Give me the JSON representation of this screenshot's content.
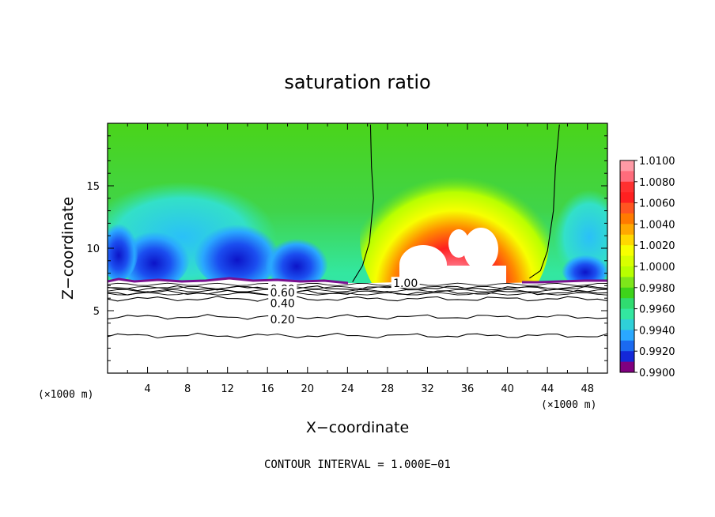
{
  "chart_data": {
    "type": "heatmap",
    "title": "saturation ratio",
    "xlabel": "X−coordinate",
    "ylabel": "Z−coordinate",
    "x_unit": "(×1000 m)",
    "xlim": [
      0,
      50
    ],
    "ylim": [
      0,
      20
    ],
    "x_ticks": [
      "4",
      "8",
      "12",
      "16",
      "20",
      "24",
      "28",
      "32",
      "36",
      "40",
      "44",
      "48"
    ],
    "y_ticks": [
      "5",
      "10",
      "15"
    ],
    "colorbar": {
      "labels": [
        "1.0100",
        "1.0080",
        "1.0060",
        "1.0040",
        "1.0020",
        "1.0000",
        "0.9980",
        "0.9960",
        "0.9940",
        "0.9920",
        "0.9900"
      ],
      "colors": [
        "#ff9aa6",
        "#ff3030",
        "#ff5520",
        "#ff8a00",
        "#f7ff00",
        "#b8ff00",
        "#3ed31a",
        "#33e7a0",
        "#2aa8ff",
        "#1428d8",
        "#800080"
      ]
    },
    "contours": [
      {
        "label": "1.00",
        "points": [
          [
            24.5,
            7.3
          ],
          [
            25.5,
            8.6
          ],
          [
            26.2,
            10.5
          ],
          [
            26.6,
            14
          ],
          [
            26.4,
            16.5
          ],
          [
            26.3,
            19.9
          ]
        ],
        "label_at": [
          29.8,
          7.2
        ]
      },
      {
        "label": "1.00",
        "points": [
          [
            42.2,
            7.6
          ],
          [
            43.3,
            8.2
          ],
          [
            44,
            9.8
          ],
          [
            44.6,
            13
          ],
          [
            44.8,
            16.5
          ],
          [
            45.2,
            19.9
          ]
        ],
        "label_at": null
      },
      {
        "label": "0.80",
        "y": 6.8,
        "label_at": [
          17.5,
          6.75
        ]
      },
      {
        "label": "0.60",
        "y": 6.45,
        "label_at": [
          17.5,
          6.45
        ]
      },
      {
        "label": "0.40",
        "y": 5.95,
        "label_at": [
          17.5,
          5.6
        ]
      },
      {
        "label": "0.20",
        "y": 4.5,
        "label_at": [
          17.5,
          4.3
        ]
      },
      {
        "label": "",
        "y": 3.0,
        "label_at": null
      }
    ]
  },
  "footer": "CONTOUR INTERVAL = 1.000E−01"
}
